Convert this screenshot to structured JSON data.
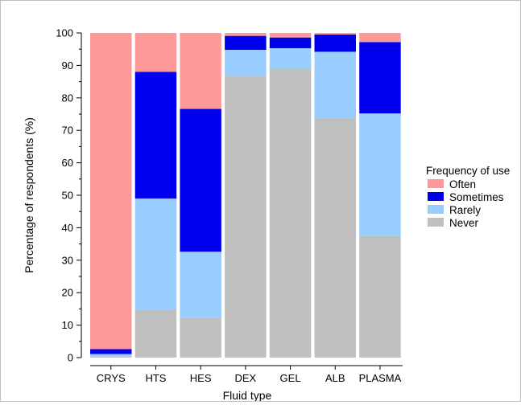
{
  "chart_data": {
    "type": "bar",
    "stacked": true,
    "xlabel": "Fluid type",
    "ylabel": "Percentage of respondents (%)",
    "ylim": [
      0,
      100
    ],
    "yticks": [
      0,
      10,
      20,
      30,
      40,
      50,
      60,
      70,
      80,
      90,
      100
    ],
    "categories": [
      "CRYS",
      "HTS",
      "HES",
      "DEX",
      "GEL",
      "ALB",
      "PLASMA"
    ],
    "series": [
      {
        "name": "Never",
        "color": "#bfbfbf",
        "values": [
          0.3,
          14.7,
          12.2,
          86.8,
          89.0,
          73.8,
          37.4
        ]
      },
      {
        "name": "Rarely",
        "color": "#99ccff",
        "values": [
          0.8,
          34.3,
          20.4,
          8.0,
          6.3,
          20.4,
          37.8
        ]
      },
      {
        "name": "Sometimes",
        "color": "#0000ee",
        "values": [
          1.5,
          39.0,
          44.0,
          4.3,
          3.3,
          5.3,
          22.0
        ]
      },
      {
        "name": "Often",
        "color": "#ff9999",
        "values": [
          97.4,
          12.0,
          23.4,
          0.9,
          1.4,
          0.5,
          2.8
        ]
      }
    ],
    "grid": false,
    "legend": {
      "title": "Frequency of use",
      "position": "right",
      "order": [
        "Often",
        "Sometimes",
        "Rarely",
        "Never"
      ]
    }
  }
}
